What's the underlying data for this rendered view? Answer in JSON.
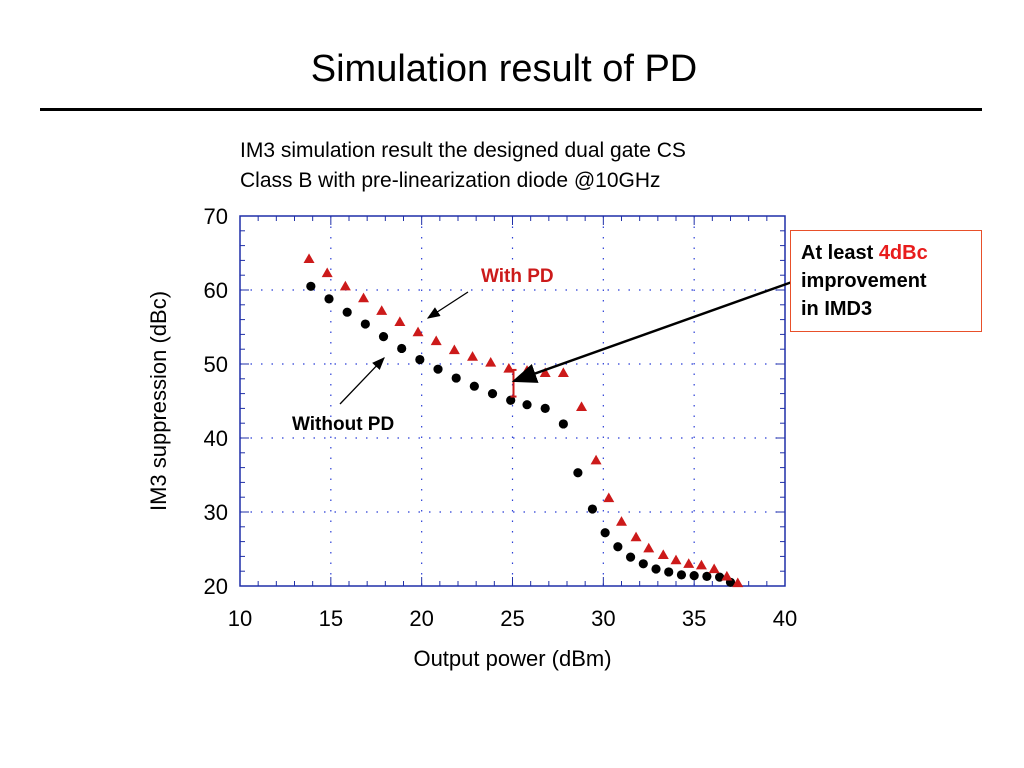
{
  "slide": {
    "title": "Simulation result of PD"
  },
  "callout": {
    "text_before": "At least ",
    "highlight": "4dBc",
    "line2": "improvement",
    "line3": "in IMD3"
  },
  "annotations": {
    "with_pd": "With PD",
    "without_pd": "Without PD"
  },
  "colors": {
    "with_pd": "#cc1a1a",
    "without_pd": "#000000",
    "callout_border": "#e8502a",
    "highlight": "#e81c1c"
  },
  "chart_data": {
    "type": "scatter",
    "title_line1": "IM3 simulation result the designed dual gate CS",
    "title_line2": "Class B with pre-linearization diode @10GHz",
    "xlabel": "Output power (dBm)",
    "ylabel": "IM3 suppression (dBc)",
    "xlim": [
      10,
      40
    ],
    "ylim": [
      20,
      70
    ],
    "xticks": [
      10,
      15,
      20,
      25,
      30,
      35,
      40
    ],
    "yticks": [
      20,
      30,
      40,
      50,
      60,
      70
    ],
    "grid": true,
    "series": [
      {
        "name": "With PD",
        "marker": "triangle",
        "x": [
          13.8,
          14.8,
          15.8,
          16.8,
          17.8,
          18.8,
          19.8,
          20.8,
          21.8,
          22.8,
          23.8,
          24.8,
          25.8,
          26.8,
          27.8,
          28.8,
          29.6,
          30.3,
          31.0,
          31.8,
          32.5,
          33.3,
          34.0,
          34.7,
          35.4,
          36.1,
          36.8,
          37.4
        ],
        "y": [
          64.2,
          62.3,
          60.5,
          58.9,
          57.2,
          55.7,
          54.3,
          53.1,
          51.9,
          51.0,
          50.2,
          49.4,
          49.1,
          48.8,
          48.8,
          44.2,
          37.0,
          31.9,
          28.7,
          26.6,
          25.1,
          24.2,
          23.5,
          23.0,
          22.8,
          22.3,
          21.3,
          20.4
        ]
      },
      {
        "name": "Without PD",
        "marker": "circle",
        "x": [
          13.9,
          14.9,
          15.9,
          16.9,
          17.9,
          18.9,
          19.9,
          20.9,
          21.9,
          22.9,
          23.9,
          24.9,
          25.8,
          26.8,
          27.8,
          28.6,
          29.4,
          30.1,
          30.8,
          31.5,
          32.2,
          32.9,
          33.6,
          34.3,
          35.0,
          35.7,
          36.4,
          37.0
        ],
        "y": [
          60.5,
          58.8,
          57.0,
          55.4,
          53.7,
          52.1,
          50.6,
          49.3,
          48.1,
          47.0,
          46.0,
          45.1,
          44.5,
          44.0,
          41.9,
          35.3,
          30.4,
          27.2,
          25.3,
          23.9,
          23.0,
          22.3,
          21.9,
          21.5,
          21.4,
          21.3,
          21.2,
          20.5
        ]
      }
    ]
  }
}
